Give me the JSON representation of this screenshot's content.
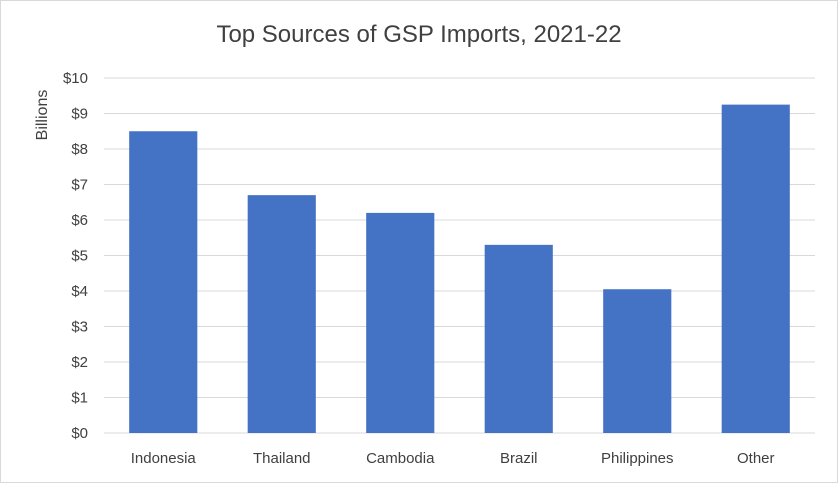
{
  "chart_data": {
    "type": "bar",
    "title": "Top Sources of GSP Imports, 2021-22",
    "xlabel": "",
    "ylabel": "Billions",
    "categories": [
      "Indonesia",
      "Thailand",
      "Cambodia",
      "Brazil",
      "Philippines",
      "Other"
    ],
    "values": [
      8.5,
      6.7,
      6.2,
      5.3,
      4.05,
      9.25
    ],
    "ylim": [
      0,
      10
    ],
    "yticks": [
      0,
      1,
      2,
      3,
      4,
      5,
      6,
      7,
      8,
      9,
      10
    ],
    "ytick_labels": [
      "$0",
      "$1",
      "$2",
      "$3",
      "$4",
      "$5",
      "$6",
      "$7",
      "$8",
      "$9",
      "$10"
    ],
    "grid": true,
    "legend": "none",
    "bar_color": "#4472c4",
    "grid_color": "#d9d9d9"
  }
}
